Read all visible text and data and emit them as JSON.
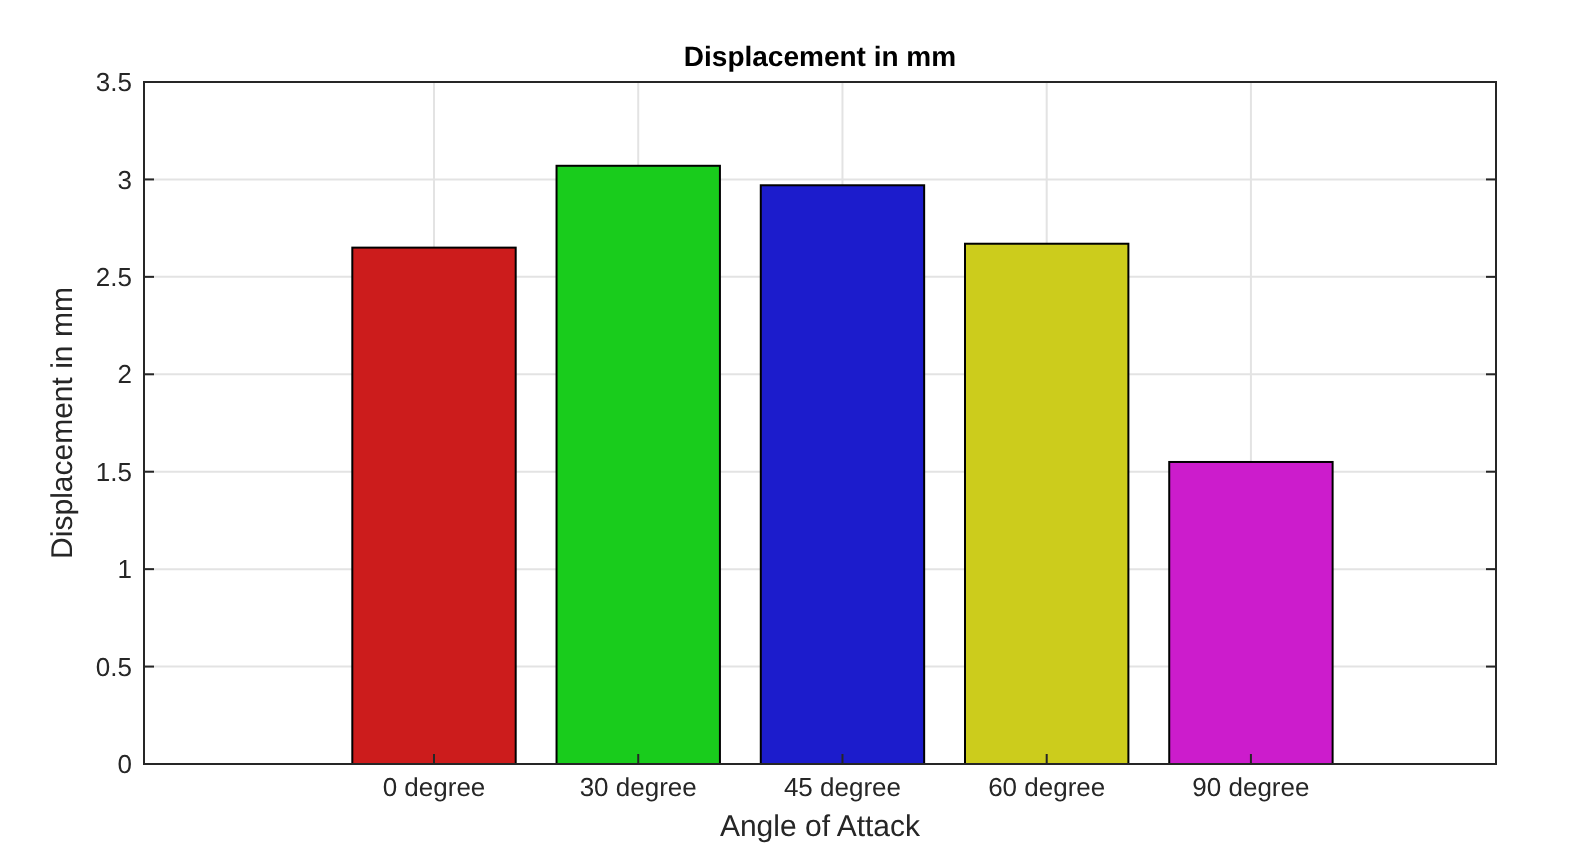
{
  "chart_data": {
    "type": "bar",
    "title": "Displacement in mm",
    "xlabel": "Angle of Attack",
    "ylabel": "Displacement in mm",
    "categories": [
      "0 degree",
      "30 degree",
      "45 degree",
      "60 degree",
      "90 degree"
    ],
    "values": [
      2.65,
      3.07,
      2.97,
      2.67,
      1.55
    ],
    "colors": [
      "#cc1c1c",
      "#19cc1c",
      "#1c1ccc",
      "#cccc1c",
      "#cc1ccc"
    ],
    "ylim": [
      0,
      3.5
    ],
    "yticks": [
      0,
      0.5,
      1,
      1.5,
      2,
      2.5,
      3,
      3.5
    ],
    "grid": true
  }
}
